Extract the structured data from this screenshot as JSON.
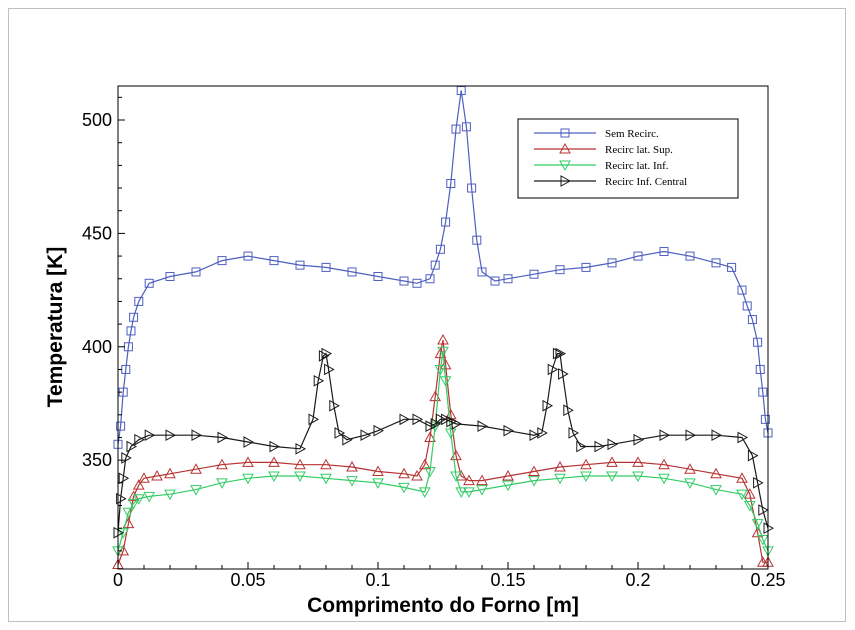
{
  "chart_data": {
    "type": "line",
    "xlabel": "Comprimento do Forno [m]",
    "ylabel": "Temperatura [K]",
    "xlim": [
      0,
      0.25
    ],
    "ylim": [
      302,
      515
    ],
    "xticks": [
      0,
      0.05,
      0.1,
      0.15,
      0.2,
      0.25
    ],
    "xtick_labels": [
      "0",
      "0.05",
      "0.1",
      "0.15",
      "0.2",
      "0.25"
    ],
    "yticks": [
      350,
      400,
      450,
      500
    ],
    "ytick_labels": [
      "350",
      "400",
      "450",
      "500"
    ],
    "grid": false,
    "legend_position": "top-right",
    "series": [
      {
        "name": "Sem Recirc.",
        "color": "#4d5fbf",
        "marker": "square",
        "x": [
          0,
          0.001,
          0.002,
          0.003,
          0.004,
          0.005,
          0.006,
          0.008,
          0.012,
          0.02,
          0.03,
          0.04,
          0.05,
          0.06,
          0.07,
          0.08,
          0.09,
          0.1,
          0.11,
          0.115,
          0.12,
          0.122,
          0.124,
          0.126,
          0.128,
          0.13,
          0.132,
          0.134,
          0.136,
          0.138,
          0.14,
          0.145,
          0.15,
          0.16,
          0.17,
          0.18,
          0.19,
          0.2,
          0.21,
          0.22,
          0.23,
          0.236,
          0.24,
          0.242,
          0.244,
          0.246,
          0.247,
          0.248,
          0.249,
          0.25
        ],
        "y": [
          357,
          365,
          380,
          390,
          400,
          407,
          413,
          420,
          428,
          431,
          433,
          438,
          440,
          438,
          436,
          435,
          433,
          431,
          429,
          428,
          430,
          436,
          443,
          455,
          472,
          496,
          513,
          497,
          470,
          447,
          433,
          429,
          430,
          432,
          434,
          435,
          437,
          440,
          442,
          440,
          437,
          435,
          425,
          418,
          412,
          402,
          390,
          380,
          368,
          362
        ]
      },
      {
        "name": "Recirc lat. Sup.",
        "color": "#b83232",
        "marker": "triangle-up",
        "x": [
          0,
          0.002,
          0.004,
          0.006,
          0.008,
          0.01,
          0.015,
          0.02,
          0.03,
          0.04,
          0.05,
          0.06,
          0.07,
          0.08,
          0.09,
          0.1,
          0.11,
          0.115,
          0.118,
          0.12,
          0.122,
          0.124,
          0.125,
          0.126,
          0.128,
          0.13,
          0.132,
          0.135,
          0.14,
          0.15,
          0.16,
          0.17,
          0.18,
          0.19,
          0.2,
          0.21,
          0.22,
          0.23,
          0.24,
          0.243,
          0.246,
          0.248,
          0.25
        ],
        "y": [
          304,
          310,
          322,
          334,
          339,
          342,
          343,
          344,
          346,
          348,
          349,
          349,
          348,
          348,
          347,
          345,
          344,
          343,
          348,
          360,
          378,
          397,
          403,
          392,
          370,
          352,
          343,
          341,
          341,
          343,
          345,
          347,
          348,
          349,
          349,
          348,
          346,
          344,
          342,
          335,
          318,
          305,
          305
        ]
      },
      {
        "name": "Recirc lat. Inf.",
        "color": "#33cc66",
        "marker": "triangle-down",
        "x": [
          0,
          0.002,
          0.004,
          0.006,
          0.008,
          0.012,
          0.02,
          0.03,
          0.04,
          0.05,
          0.06,
          0.07,
          0.08,
          0.09,
          0.1,
          0.11,
          0.118,
          0.12,
          0.122,
          0.124,
          0.125,
          0.126,
          0.128,
          0.13,
          0.132,
          0.135,
          0.14,
          0.15,
          0.16,
          0.17,
          0.18,
          0.19,
          0.2,
          0.21,
          0.22,
          0.23,
          0.24,
          0.243,
          0.246,
          0.248,
          0.25
        ],
        "y": [
          310,
          318,
          327,
          331,
          333,
          334,
          335,
          337,
          340,
          342,
          343,
          343,
          342,
          341,
          340,
          338,
          336,
          345,
          365,
          390,
          398,
          385,
          362,
          343,
          336,
          336,
          337,
          339,
          341,
          342,
          343,
          343,
          343,
          342,
          340,
          337,
          335,
          330,
          322,
          315,
          310
        ]
      },
      {
        "name": "Recirc Inf. Central",
        "color": "#1a1a1a",
        "marker": "triangle-right",
        "x": [
          0,
          0.001,
          0.002,
          0.003,
          0.005,
          0.008,
          0.012,
          0.02,
          0.03,
          0.04,
          0.05,
          0.06,
          0.07,
          0.075,
          0.077,
          0.079,
          0.08,
          0.081,
          0.083,
          0.085,
          0.088,
          0.095,
          0.1,
          0.11,
          0.115,
          0.12,
          0.122,
          0.124,
          0.126,
          0.128,
          0.13,
          0.14,
          0.15,
          0.16,
          0.163,
          0.165,
          0.167,
          0.169,
          0.17,
          0.171,
          0.173,
          0.175,
          0.178,
          0.185,
          0.19,
          0.2,
          0.21,
          0.22,
          0.23,
          0.24,
          0.244,
          0.246,
          0.248,
          0.25
        ],
        "y": [
          318,
          333,
          342,
          351,
          356,
          359,
          361,
          361,
          361,
          360,
          358,
          356,
          355,
          368,
          385,
          396,
          397,
          390,
          374,
          362,
          359,
          361,
          363,
          368,
          368,
          365,
          366,
          368,
          368,
          367,
          366,
          365,
          363,
          361,
          362,
          374,
          390,
          397,
          397,
          388,
          372,
          362,
          356,
          356,
          357,
          359,
          361,
          361,
          361,
          360,
          352,
          340,
          328,
          320
        ]
      }
    ]
  }
}
